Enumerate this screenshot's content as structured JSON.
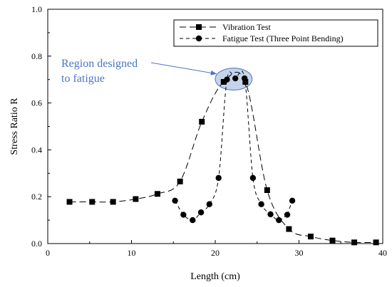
{
  "chart_data": {
    "type": "line",
    "xlabel": "Length (cm)",
    "ylabel": "Stress Ratio R",
    "xlim": [
      0,
      40
    ],
    "ylim": [
      0,
      1.0
    ],
    "xticks": [
      "0",
      "10",
      "20",
      "30",
      "40"
    ],
    "yticks": [
      "0.0",
      "0.2",
      "0.4",
      "0.6",
      "0.8",
      "1.0"
    ],
    "grid": false,
    "legend_position": "top-right",
    "series": [
      {
        "name": "Vibration Test",
        "marker": "square",
        "line_style": "long-dash",
        "x": [
          2.6,
          5.3,
          7.8,
          10.5,
          13.1,
          15.8,
          18.4,
          21.0,
          23.6,
          26.2,
          28.8,
          31.4,
          34.0,
          36.6,
          39.2
        ],
        "y": [
          0.178,
          0.178,
          0.178,
          0.19,
          0.212,
          0.265,
          0.52,
          0.69,
          0.69,
          0.228,
          0.062,
          0.03,
          0.013,
          0.005,
          0.005
        ]
      },
      {
        "name": "Fatigue Test (Three Point Bending)",
        "marker": "circle",
        "line_style": "short-dash",
        "x": [
          15.2,
          16.2,
          17.3,
          18.3,
          19.3,
          20.4,
          21.4,
          22.4,
          23.5,
          24.5,
          25.5,
          26.6,
          27.6,
          28.6
        ],
        "y": [
          0.183,
          0.123,
          0.1,
          0.133,
          0.168,
          0.28,
          0.7,
          0.705,
          0.705,
          0.28,
          0.168,
          0.125,
          0.1,
          0.123
        ]
      },
      {
        "name": "",
        "note_free": true,
        "marker": "circle",
        "line_style": "short-dash",
        "x": [
          28.6,
          29.2
        ],
        "y": [
          0.123,
          0.183
        ]
      }
    ],
    "annotations": [
      {
        "text_lines": [
          "Region designed",
          "to fatigue"
        ],
        "target": {
          "x": 22.2,
          "y": 0.7
        },
        "color": "#4a74c4"
      }
    ],
    "highlight": {
      "center": {
        "x": 22.2,
        "y": 0.702
      },
      "rx_data": 2.2,
      "ry_data": 0.047,
      "fill": "#c6d4ea",
      "stroke": "#4a74c4"
    }
  }
}
